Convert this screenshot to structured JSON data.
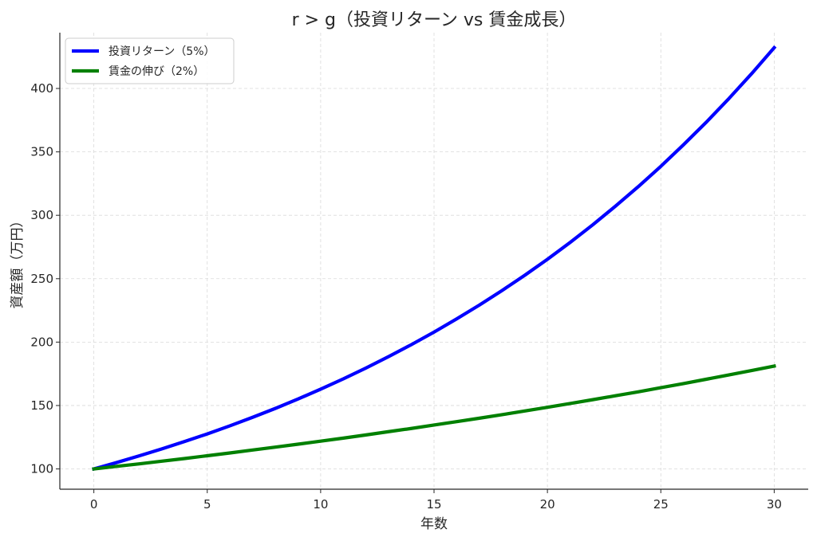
{
  "chart_data": {
    "type": "line",
    "title": "r > g（投資リターン vs 賃金成長）",
    "xlabel": "年数",
    "ylabel": "資産額（万円）",
    "xlim": [
      -1.5,
      31.5
    ],
    "ylim": [
      84,
      444
    ],
    "xticks": [
      0,
      5,
      10,
      15,
      20,
      25,
      30
    ],
    "yticks": [
      100,
      150,
      200,
      250,
      300,
      350,
      400
    ],
    "grid": true,
    "legend_position": "top-left",
    "x": [
      0,
      1,
      2,
      3,
      4,
      5,
      6,
      7,
      8,
      9,
      10,
      11,
      12,
      13,
      14,
      15,
      16,
      17,
      18,
      19,
      20,
      21,
      22,
      23,
      24,
      25,
      26,
      27,
      28,
      29,
      30
    ],
    "series": [
      {
        "name": "投資リターン（5%）",
        "color": "#0000ff",
        "values": [
          100,
          105,
          110.3,
          115.8,
          121.6,
          127.6,
          134,
          140.7,
          147.7,
          155.1,
          162.9,
          171,
          179.6,
          188.6,
          198,
          207.9,
          218.3,
          229.2,
          240.7,
          252.7,
          265.3,
          278.6,
          292.5,
          307.2,
          322.5,
          338.6,
          355.6,
          373.3,
          392,
          411.6,
          432.2
        ]
      },
      {
        "name": "賃金の伸び（2%）",
        "color": "#008000",
        "values": [
          100,
          102,
          104,
          106.1,
          108.2,
          110.4,
          112.6,
          114.9,
          117.2,
          119.5,
          121.9,
          124.3,
          126.8,
          129.4,
          131.9,
          134.6,
          137.3,
          140,
          142.8,
          145.7,
          148.6,
          151.6,
          154.6,
          157.7,
          160.8,
          164.1,
          167.3,
          170.7,
          174.1,
          177.6,
          181.1
        ]
      }
    ]
  }
}
